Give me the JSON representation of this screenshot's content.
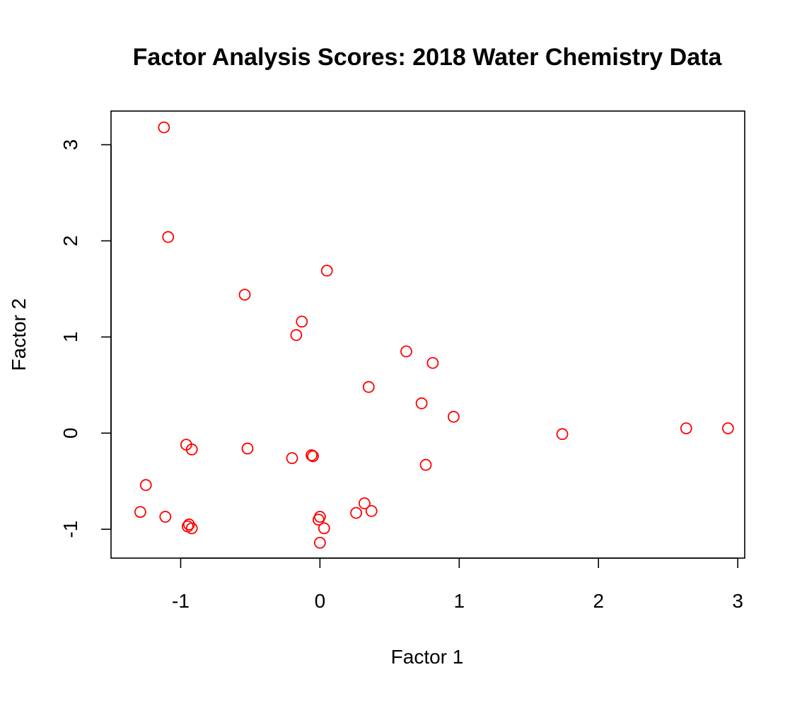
{
  "chart_data": {
    "type": "scatter",
    "title": "Factor Analysis Scores: 2018 Water Chemistry Data",
    "xlabel": "Factor 1",
    "ylabel": "Factor 2",
    "xlim": [
      -1.5,
      3.05
    ],
    "ylim": [
      -1.3,
      3.35
    ],
    "xticks": [
      -1,
      0,
      1,
      2,
      3
    ],
    "yticks": [
      -1,
      0,
      1,
      2,
      3
    ],
    "x_tick_labels": [
      "-1",
      "0",
      "1",
      "2",
      "3"
    ],
    "y_tick_labels": [
      "-1",
      "0",
      "1",
      "2",
      "3"
    ],
    "marker": "open-circle",
    "point_color": "#ff0000",
    "grid": false,
    "legend": "none",
    "points": [
      {
        "x": -1.12,
        "y": 3.18
      },
      {
        "x": -1.09,
        "y": 2.04
      },
      {
        "x": -0.54,
        "y": 1.44
      },
      {
        "x": 0.05,
        "y": 1.69
      },
      {
        "x": -0.13,
        "y": 1.16
      },
      {
        "x": -0.17,
        "y": 1.02
      },
      {
        "x": 0.62,
        "y": 0.85
      },
      {
        "x": 0.81,
        "y": 0.73
      },
      {
        "x": 0.35,
        "y": 0.48
      },
      {
        "x": 0.73,
        "y": 0.31
      },
      {
        "x": 0.96,
        "y": 0.17
      },
      {
        "x": 1.74,
        "y": -0.01
      },
      {
        "x": 2.63,
        "y": 0.05
      },
      {
        "x": 2.93,
        "y": 0.05
      },
      {
        "x": -0.96,
        "y": -0.12
      },
      {
        "x": -0.92,
        "y": -0.17
      },
      {
        "x": -0.52,
        "y": -0.16
      },
      {
        "x": -0.2,
        "y": -0.26
      },
      {
        "x": -0.06,
        "y": -0.23
      },
      {
        "x": -0.05,
        "y": -0.24
      },
      {
        "x": 0.76,
        "y": -0.33
      },
      {
        "x": -1.25,
        "y": -0.54
      },
      {
        "x": -1.29,
        "y": -0.82
      },
      {
        "x": -1.11,
        "y": -0.87
      },
      {
        "x": -0.94,
        "y": -0.95
      },
      {
        "x": -0.95,
        "y": -0.97
      },
      {
        "x": -0.92,
        "y": -0.99
      },
      {
        "x": 0.0,
        "y": -0.87
      },
      {
        "x": -0.01,
        "y": -0.9
      },
      {
        "x": 0.03,
        "y": -0.99
      },
      {
        "x": 0.0,
        "y": -1.14
      },
      {
        "x": 0.26,
        "y": -0.83
      },
      {
        "x": 0.32,
        "y": -0.73
      },
      {
        "x": 0.37,
        "y": -0.81
      }
    ]
  }
}
